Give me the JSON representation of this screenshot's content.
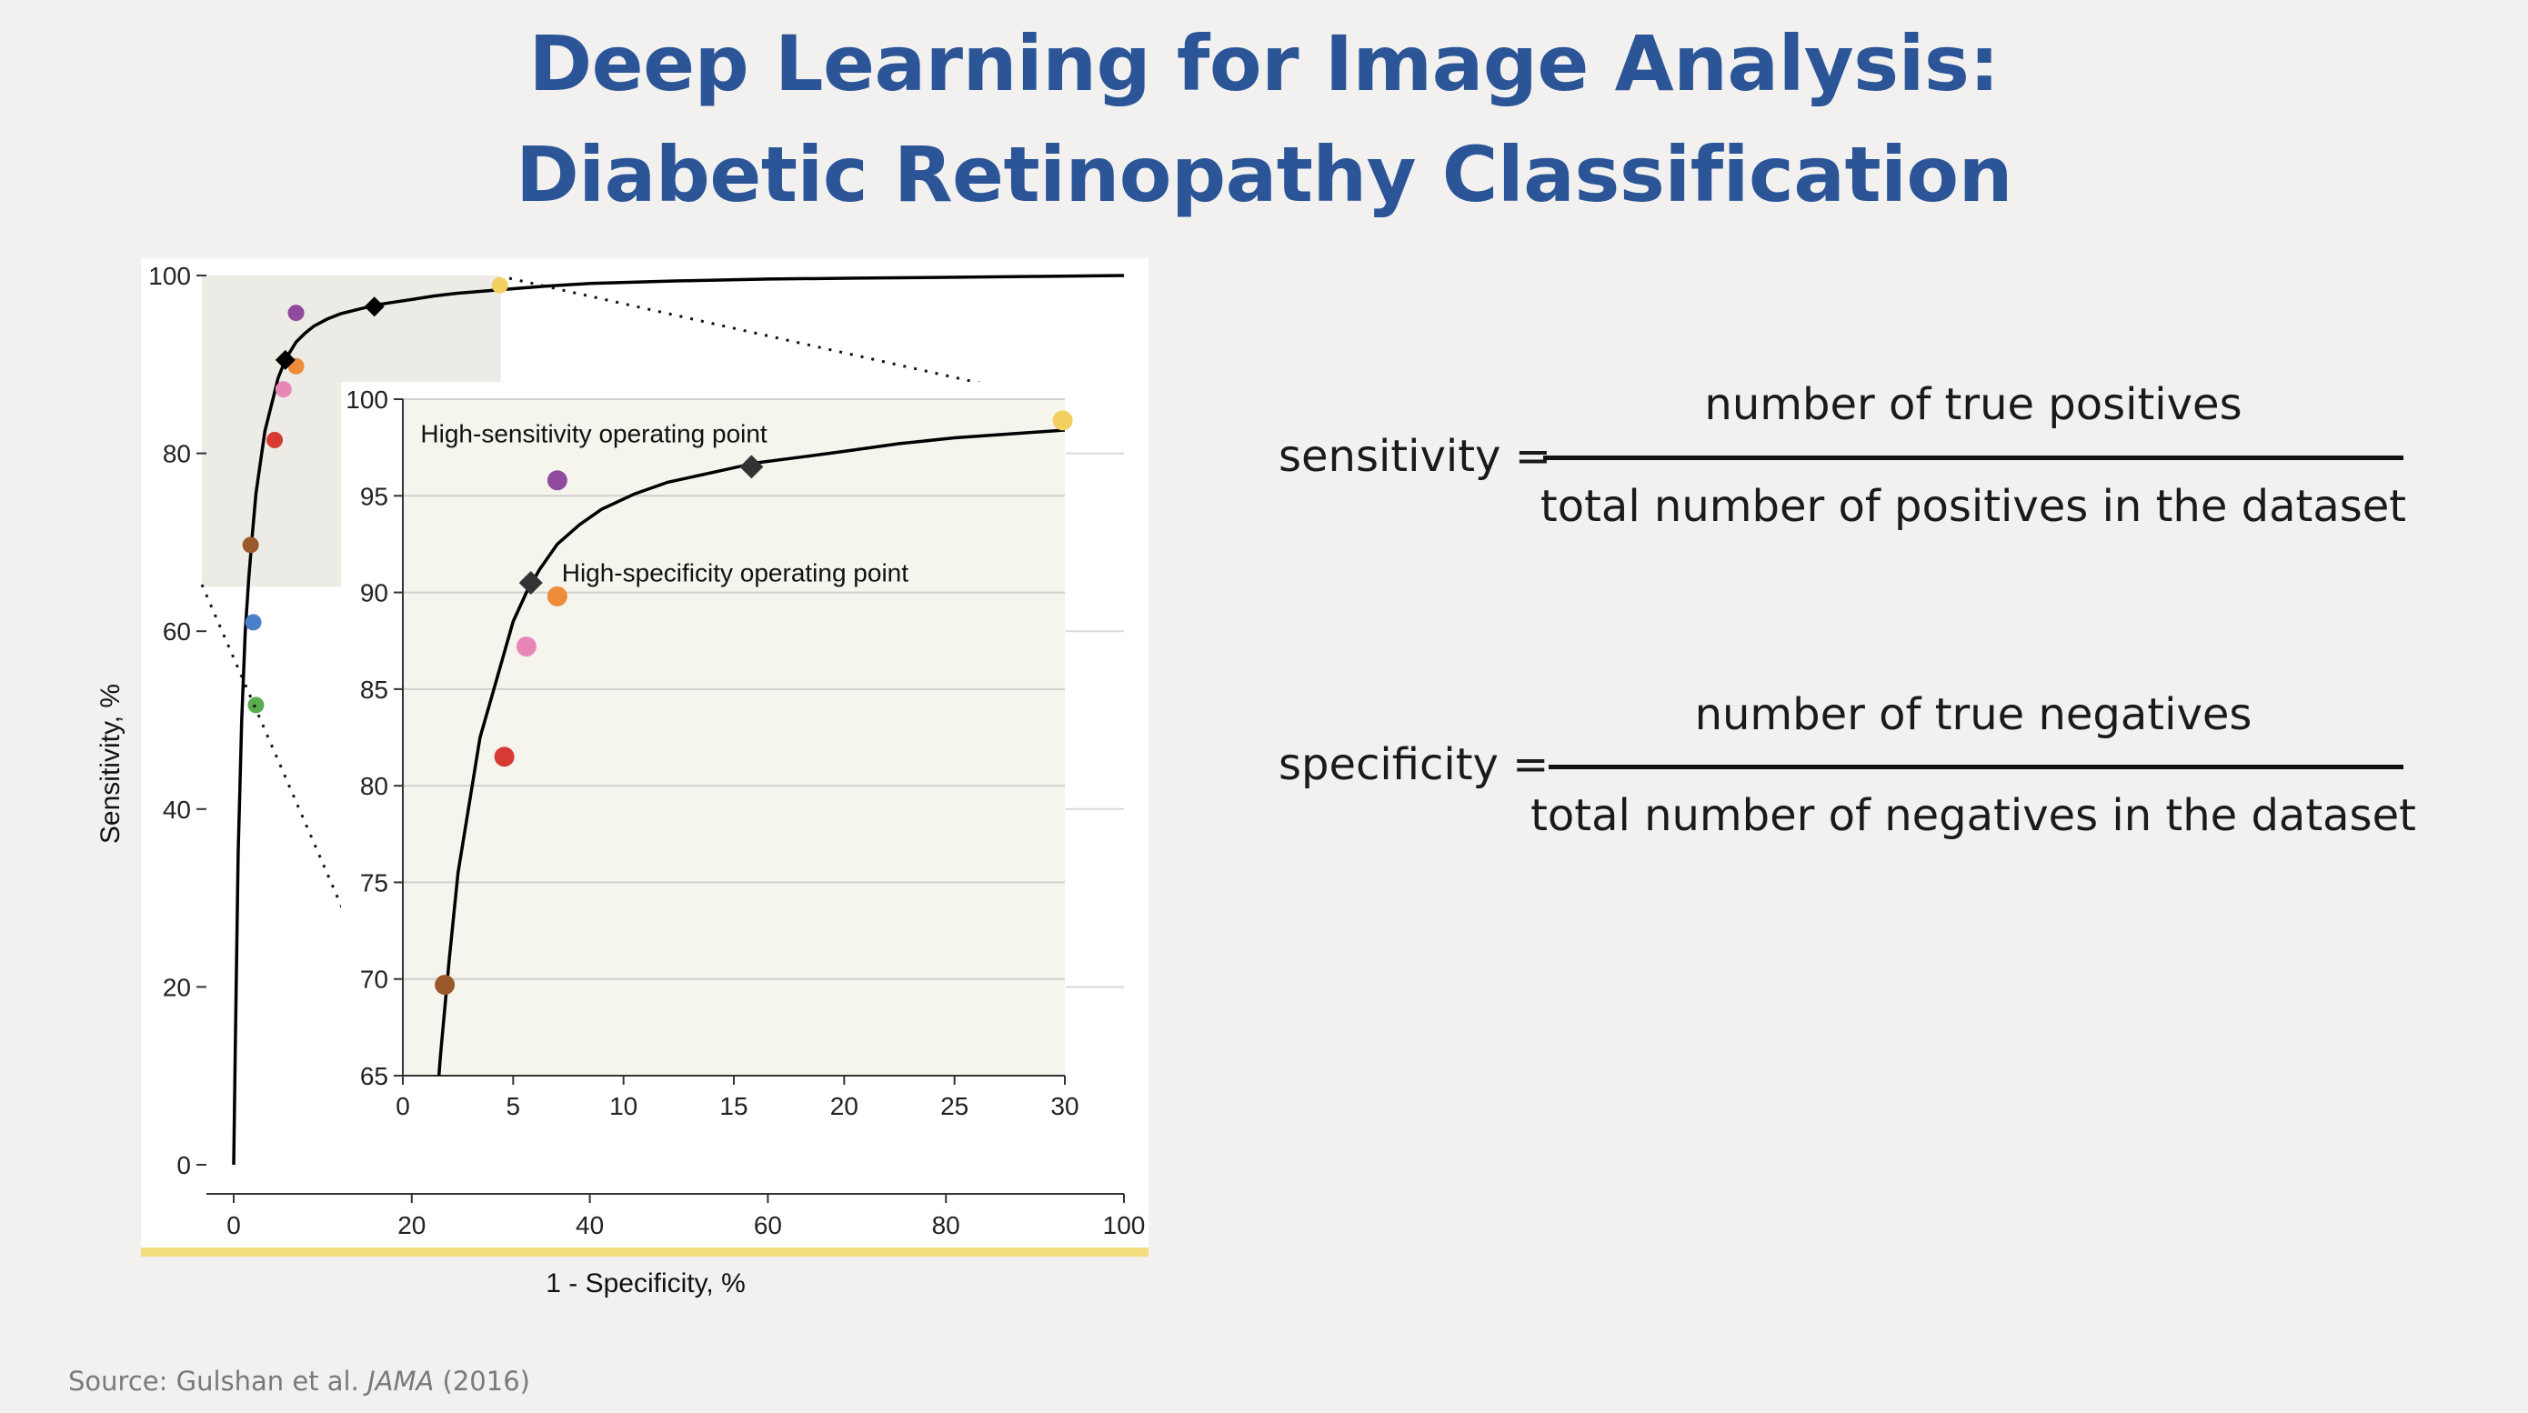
{
  "title": {
    "line1": "Deep Learning for Image Analysis:",
    "line2": "Diabetic Retinopathy Classification"
  },
  "colors": {
    "title": "#2b5597",
    "background": "#f2f1ef",
    "gold_bar": "#f4dd7f"
  },
  "formulas": {
    "sensitivity": {
      "label": "sensitivity =",
      "numerator": "number of true positives",
      "denominator": "total number of positives in the dataset"
    },
    "specificity": {
      "label": "specificity =",
      "numerator": "number of true negatives",
      "denominator": "total number of negatives in the dataset"
    }
  },
  "source": {
    "prefix": "Source: Gulshan et al. ",
    "journal": "JAMA",
    "suffix": " (2016)"
  },
  "chart_data": [
    {
      "type": "line",
      "title": "",
      "xlabel": "1 - Specificity, %",
      "ylabel": "Sensitivity, %",
      "xlim": [
        0,
        100
      ],
      "ylim": [
        0,
        100
      ],
      "xticks": [
        "0",
        "20",
        "40",
        "60",
        "80",
        "100"
      ],
      "yticks": [
        "0",
        "20",
        "40",
        "60",
        "80",
        "100"
      ],
      "zoom_region": {
        "x": [
          0,
          30
        ],
        "y": [
          65,
          100
        ]
      },
      "roc_curve": {
        "x": [
          0,
          0.2,
          0.5,
          0.9,
          1.3,
          1.7,
          2.1,
          2.5,
          3.0,
          3.5,
          4.0,
          4.5,
          5.0,
          5.6,
          6.2,
          7.0,
          8.0,
          9.0,
          10.5,
          12.0,
          14.0,
          16.0,
          18.0,
          20.0,
          22.5,
          25.0,
          27.5,
          30.0,
          35,
          40,
          50,
          60,
          70,
          80,
          90,
          100
        ],
        "y": [
          0,
          15,
          35,
          50,
          60,
          66,
          71,
          75.5,
          79,
          82.5,
          84.5,
          86.5,
          88.5,
          90,
          91.2,
          92.5,
          93.5,
          94.3,
          95.1,
          95.7,
          96.2,
          96.7,
          97.0,
          97.3,
          97.7,
          98.0,
          98.2,
          98.4,
          98.8,
          99.1,
          99.4,
          99.6,
          99.7,
          99.8,
          99.9,
          100
        ]
      },
      "operating_points": [
        {
          "name": "High-specificity operating point",
          "x": 5.8,
          "y": 90.5
        },
        {
          "name": "High-sensitivity operating point",
          "x": 15.8,
          "y": 96.5
        }
      ],
      "ophthalmologists": [
        {
          "x": 7.0,
          "y": 95.8,
          "color": "#8f4c9e"
        },
        {
          "x": 7.0,
          "y": 89.8,
          "color": "#ef8c3a"
        },
        {
          "x": 5.6,
          "y": 87.2,
          "color": "#e887b7"
        },
        {
          "x": 4.6,
          "y": 81.5,
          "color": "#d63b33"
        },
        {
          "x": 1.9,
          "y": 69.7,
          "color": "#9b582c"
        },
        {
          "x": 29.9,
          "y": 98.9,
          "color": "#f2cf61"
        },
        {
          "x": 2.2,
          "y": 61.0,
          "color": "#4a7fc9"
        },
        {
          "x": 2.5,
          "y": 51.7,
          "color": "#5aac50"
        }
      ]
    },
    {
      "type": "line",
      "title": "",
      "xlabel": "",
      "ylabel": "",
      "xlim": [
        0,
        30
      ],
      "ylim": [
        65,
        100
      ],
      "xticks": [
        "0",
        "5",
        "10",
        "15",
        "20",
        "25",
        "30"
      ],
      "yticks": [
        "65",
        "70",
        "75",
        "80",
        "85",
        "90",
        "95",
        "100"
      ],
      "annotations": [
        {
          "text": "High-sensitivity operating point",
          "x": 0.8,
          "y": 98.2
        },
        {
          "text": "High-specificity operating point",
          "x": 7.2,
          "y": 91.0
        }
      ]
    }
  ]
}
